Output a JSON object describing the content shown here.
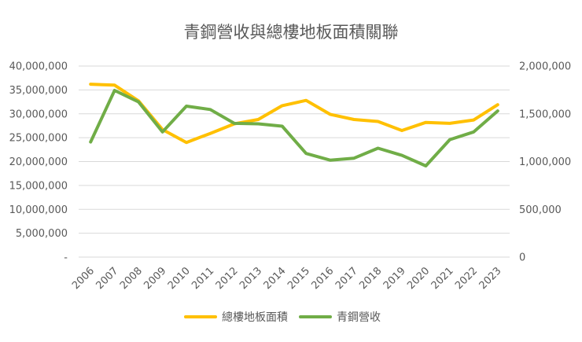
{
  "chart_data": {
    "type": "line",
    "title": "青鋼營收與總樓地板面積關聯",
    "categories": [
      "2006",
      "2007",
      "2008",
      "2009",
      "2010",
      "2011",
      "2012",
      "2013",
      "2014",
      "2015",
      "2016",
      "2017",
      "2018",
      "2019",
      "2020",
      "2021",
      "2022",
      "2023"
    ],
    "series": [
      {
        "name": "總樓地板面積",
        "axis": "left",
        "color": "#FFC000",
        "values": [
          36200000,
          36000000,
          32700000,
          26700000,
          24000000,
          25900000,
          27900000,
          28800000,
          31700000,
          32800000,
          29900000,
          28800000,
          28400000,
          26500000,
          28200000,
          28000000,
          28700000,
          31900000
        ]
      },
      {
        "name": "青鋼營收",
        "axis": "right",
        "color": "#70AD47",
        "values": [
          1205000,
          1745000,
          1625000,
          1310000,
          1580000,
          1545000,
          1400000,
          1395000,
          1370000,
          1085000,
          1015000,
          1035000,
          1140000,
          1065000,
          955000,
          1230000,
          1310000,
          1530000
        ]
      }
    ],
    "y_left": {
      "ylim": [
        0,
        40000000
      ],
      "ticks": [
        0,
        5000000,
        10000000,
        15000000,
        20000000,
        25000000,
        30000000,
        35000000,
        40000000
      ],
      "tick_labels": [
        "-",
        "5,000,000",
        "10,000,000",
        "15,000,000",
        "20,000,000",
        "25,000,000",
        "30,000,000",
        "35,000,000",
        "40,000,000"
      ]
    },
    "y_right": {
      "ylim": [
        0,
        2000000
      ],
      "ticks": [
        0,
        500000,
        1000000,
        1500000,
        2000000
      ],
      "tick_labels": [
        "0",
        "500,000",
        "1,000,000",
        "1,500,000",
        "2,000,000"
      ]
    },
    "grid": true,
    "legend": "bottom-center"
  }
}
